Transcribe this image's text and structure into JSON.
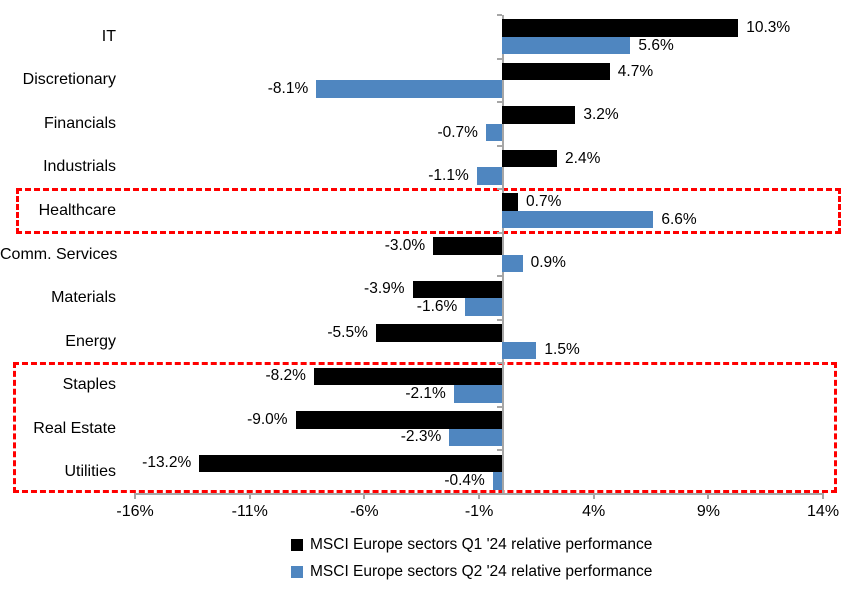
{
  "chart_data": {
    "type": "bar",
    "orientation": "horizontal",
    "title": "",
    "categories": [
      "IT",
      "Discretionary",
      "Financials",
      "Industrials",
      "Healthcare",
      "Comm. Services",
      "Materials",
      "Energy",
      "Staples",
      "Real Estate",
      "Utilities"
    ],
    "series": [
      {
        "name": "MSCI Europe sectors Q1 '24 relative performance",
        "color": "#000000",
        "values": [
          10.3,
          4.7,
          3.2,
          2.4,
          0.7,
          -3.0,
          -3.9,
          -5.5,
          -8.2,
          -9.0,
          -13.2
        ],
        "value_labels": [
          "10.3%",
          "4.7%",
          "3.2%",
          "2.4%",
          "0.7%",
          "-3.0%",
          "-3.9%",
          "-5.5%",
          "-8.2%",
          "-9.0%",
          "-13.2%"
        ]
      },
      {
        "name": "MSCI Europe sectors Q2 '24 relative performance",
        "color": "#4f86c0",
        "values": [
          5.6,
          -8.1,
          -0.7,
          -1.1,
          6.6,
          0.9,
          -1.6,
          1.5,
          -2.1,
          -2.3,
          -0.4
        ],
        "value_labels": [
          "5.6%",
          "-8.1%",
          "-0.7%",
          "-1.1%",
          "6.6%",
          "0.9%",
          "-1.6%",
          "1.5%",
          "-2.1%",
          "-2.3%",
          "-0.4%"
        ]
      }
    ],
    "xlim": [
      -16,
      14
    ],
    "x_tick_values": [
      -16,
      -11,
      -6,
      -1,
      4,
      9,
      14
    ],
    "x_tick_labels": [
      "-16%",
      "-11%",
      "-6%",
      "-1%",
      "4%",
      "9%",
      "14%"
    ],
    "grid": false,
    "legend_position": "bottom",
    "value_labels_shown": true,
    "highlight_boxes": [
      {
        "label": "healthcare-highlight",
        "categories": [
          "Healthcare"
        ],
        "from_index": 4,
        "to_index": 4,
        "color": "#ff0000",
        "style": "dashed"
      },
      {
        "label": "defensives-highlight",
        "categories": [
          "Staples",
          "Real Estate",
          "Utilities"
        ],
        "from_index": 8,
        "to_index": 10,
        "color": "#ff0000",
        "style": "dashed"
      }
    ]
  },
  "legend": {
    "q1_label": "MSCI Europe sectors Q1 '24 relative performance",
    "q2_label": "MSCI Europe sectors Q2 '24 relative performance"
  },
  "colors": {
    "q1_bar": "#000000",
    "q2_bar": "#4f86c0",
    "axis": "#a6a6a6",
    "highlight": "#ff0000",
    "text": "#000000",
    "background": "#ffffff"
  }
}
